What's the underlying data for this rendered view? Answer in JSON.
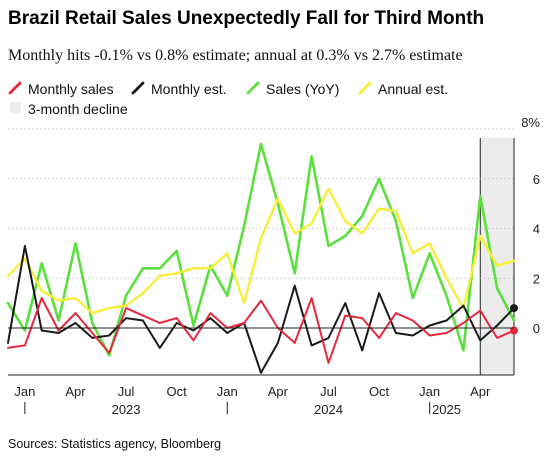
{
  "title": "Brazil Retail Sales Unexpectedly Fall for Third Month",
  "subtitle": "Monthly hits -0.1% vs 0.8% estimate; annual at 0.3% vs 2.7% estimate",
  "source": "Sources: Statistics agency, Bloomberg",
  "colors": {
    "monthly_sales": "#e8283c",
    "monthly_est": "#1a1a1a",
    "sales_yoy": "#5ae03c",
    "annual_est": "#f7ee3a",
    "decline_shade": "#ececec"
  },
  "chart_data": {
    "type": "line",
    "x_start": "2022-12",
    "x_end": "2025-06",
    "x_tick_labels": [
      "Jan",
      "Apr",
      "Jul",
      "Oct",
      "Jan",
      "Apr",
      "Jul",
      "Oct",
      "Jan",
      "Apr"
    ],
    "x_tick_dates": [
      "2023-01",
      "2023-04",
      "2023-07",
      "2023-10",
      "2024-01",
      "2024-04",
      "2024-07",
      "2024-10",
      "2025-01",
      "2025-04"
    ],
    "year_labels": [
      "2023",
      "2024",
      "2025"
    ],
    "year_label_dates": [
      "2023-07",
      "2024-07",
      "2025-02"
    ],
    "ylim": [
      -2.2,
      8.3
    ],
    "y_ticks": [
      0,
      2,
      4,
      6,
      8
    ],
    "y_tick_labels": [
      "0",
      "2",
      "4",
      "6",
      "8%"
    ],
    "legend": [
      {
        "key": "monthly_sales",
        "label": "Monthly sales",
        "kind": "line"
      },
      {
        "key": "monthly_est",
        "label": "Monthly est.",
        "kind": "line"
      },
      {
        "key": "sales_yoy",
        "label": "Sales (YoY)",
        "kind": "line"
      },
      {
        "key": "annual_est",
        "label": "Annual est.",
        "kind": "line"
      },
      {
        "key": "decline_shade",
        "label": "3-month decline",
        "kind": "box"
      }
    ],
    "shaded_region": {
      "label": "3-month decline",
      "start": "2025-04",
      "end": "2025-06"
    },
    "series": [
      {
        "key": "sales_yoy",
        "name": "Sales (YoY)",
        "dates": [
          "2022-12",
          "2023-01",
          "2023-02",
          "2023-03",
          "2023-04",
          "2023-05",
          "2023-06",
          "2023-07",
          "2023-08",
          "2023-09",
          "2023-10",
          "2023-11",
          "2023-12",
          "2024-01",
          "2024-02",
          "2024-03",
          "2024-04",
          "2024-05",
          "2024-06",
          "2024-07",
          "2024-08",
          "2024-09",
          "2024-10",
          "2024-11",
          "2024-12",
          "2025-01",
          "2025-02",
          "2025-03",
          "2025-04",
          "2025-05",
          "2025-06"
        ],
        "values": [
          1.0,
          -0.1,
          2.6,
          0.3,
          3.4,
          0.2,
          -1.1,
          1.3,
          2.4,
          2.4,
          3.1,
          0.1,
          2.5,
          1.3,
          4.1,
          7.4,
          5.0,
          2.2,
          6.9,
          3.3,
          3.7,
          4.5,
          6.0,
          4.3,
          1.2,
          3.0,
          1.3,
          -0.9,
          5.3,
          1.6,
          0.3
        ]
      },
      {
        "key": "annual_est",
        "name": "Annual est.",
        "dates": [
          "2022-12",
          "2023-01",
          "2023-02",
          "2023-03",
          "2023-04",
          "2023-05",
          "2023-06",
          "2023-07",
          "2023-08",
          "2023-09",
          "2023-10",
          "2023-11",
          "2023-12",
          "2024-01",
          "2024-02",
          "2024-03",
          "2024-04",
          "2024-05",
          "2024-06",
          "2024-07",
          "2024-08",
          "2024-09",
          "2024-10",
          "2024-11",
          "2024-12",
          "2025-01",
          "2025-02",
          "2025-03",
          "2025-04",
          "2025-05",
          "2025-06"
        ],
        "values": [
          2.1,
          2.8,
          1.5,
          1.1,
          1.2,
          0.6,
          0.8,
          0.9,
          1.4,
          2.1,
          2.2,
          2.4,
          2.4,
          3.0,
          1.0,
          3.6,
          5.2,
          3.8,
          4.2,
          5.6,
          4.3,
          3.8,
          4.8,
          4.7,
          3.0,
          3.4,
          2.0,
          0.8,
          3.7,
          2.5,
          2.7
        ]
      },
      {
        "key": "monthly_est",
        "name": "Monthly est.",
        "dates": [
          "2022-12",
          "2023-01",
          "2023-02",
          "2023-03",
          "2023-04",
          "2023-05",
          "2023-06",
          "2023-07",
          "2023-08",
          "2023-09",
          "2023-10",
          "2023-11",
          "2023-12",
          "2024-01",
          "2024-02",
          "2024-03",
          "2024-04",
          "2024-05",
          "2024-06",
          "2024-07",
          "2024-08",
          "2024-09",
          "2024-10",
          "2024-11",
          "2024-12",
          "2025-01",
          "2025-02",
          "2025-03",
          "2025-04",
          "2025-05",
          "2025-06"
        ],
        "values": [
          -0.6,
          3.3,
          -0.1,
          -0.2,
          0.2,
          -0.4,
          -0.3,
          0.4,
          0.3,
          -0.8,
          0.2,
          -0.1,
          0.4,
          -0.2,
          0.2,
          -1.8,
          -0.6,
          1.7,
          -0.7,
          -0.4,
          1.0,
          -0.9,
          1.4,
          -0.2,
          -0.3,
          0.1,
          0.3,
          0.9,
          -0.5,
          0.1,
          0.8
        ]
      },
      {
        "key": "monthly_sales",
        "name": "Monthly sales",
        "dates": [
          "2022-12",
          "2023-01",
          "2023-02",
          "2023-03",
          "2023-04",
          "2023-05",
          "2023-06",
          "2023-07",
          "2023-08",
          "2023-09",
          "2023-10",
          "2023-11",
          "2023-12",
          "2024-01",
          "2024-02",
          "2024-03",
          "2024-04",
          "2024-05",
          "2024-06",
          "2024-07",
          "2024-08",
          "2024-09",
          "2024-10",
          "2024-11",
          "2024-12",
          "2025-01",
          "2025-02",
          "2025-03",
          "2025-04",
          "2025-05",
          "2025-06"
        ],
        "values": [
          -0.8,
          -0.7,
          1.2,
          -0.1,
          0.6,
          -0.2,
          -1.0,
          0.8,
          0.5,
          0.2,
          0.4,
          -0.5,
          0.6,
          0.0,
          0.2,
          1.1,
          0.0,
          -0.6,
          1.2,
          -1.4,
          0.5,
          0.4,
          -0.4,
          0.6,
          0.3,
          -0.3,
          -0.2,
          0.2,
          0.7,
          -0.4,
          -0.1
        ]
      }
    ]
  }
}
